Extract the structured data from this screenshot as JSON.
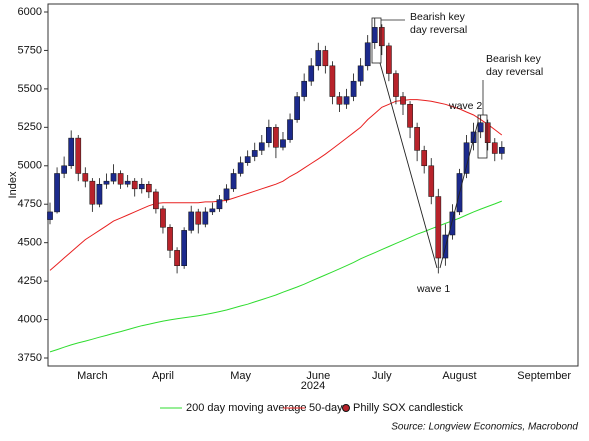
{
  "chart_data": {
    "type": "candlestick",
    "ylabel": "Index",
    "xlabel": "2024",
    "categories": [
      null,
      null,
      null,
      null,
      null,
      null,
      "March",
      null,
      null,
      null,
      null,
      null,
      null,
      null,
      null,
      null,
      "April",
      null,
      null,
      null,
      null,
      null,
      null,
      null,
      null,
      null,
      null,
      "May",
      null,
      null,
      null,
      null,
      null,
      null,
      null,
      null,
      null,
      null,
      "June",
      null,
      null,
      null,
      null,
      null,
      null,
      null,
      null,
      "July",
      null,
      null,
      null,
      null,
      null,
      null,
      null,
      null,
      null,
      null,
      "August",
      null,
      null,
      null,
      null,
      null,
      null,
      null,
      null,
      null,
      null,
      null,
      "September"
    ],
    "ylim": [
      3700,
      6050
    ],
    "yticks": [
      3750,
      4000,
      4250,
      4500,
      4750,
      5000,
      5250,
      5500,
      5750,
      6000
    ],
    "series": [
      {
        "name": "200 day moving average",
        "type": "line",
        "color": "#2fdc2f",
        "values": [
          3790,
          3805,
          3820,
          3835,
          3848,
          3860,
          3872,
          3885,
          3897,
          3910,
          3922,
          3935,
          3948,
          3960,
          3970,
          3980,
          3990,
          3998,
          4005,
          4012,
          4018,
          4025,
          4033,
          4042,
          4052,
          4062,
          4075,
          4088,
          4100,
          4115,
          4130,
          4145,
          4160,
          4178,
          4195,
          4212,
          4230,
          4250,
          4270,
          4290,
          4310,
          4330,
          4350,
          4372,
          4395,
          4415,
          4435,
          4455,
          4475,
          4495,
          4515,
          4535,
          4555,
          4572,
          4590,
          4608,
          4625,
          4642,
          4660,
          4680,
          4700,
          4718,
          4735,
          4752,
          4770,
          null,
          null,
          null,
          null,
          null,
          null
        ]
      },
      {
        "name": "50-day",
        "type": "line",
        "color": "#e82020",
        "values": [
          4320,
          4360,
          4400,
          4440,
          4480,
          4520,
          4550,
          4580,
          4610,
          4640,
          4660,
          4680,
          4700,
          4720,
          4740,
          4755,
          4760,
          4760,
          4760,
          4760,
          4760,
          4760,
          4765,
          4765,
          4770,
          4775,
          4790,
          4805,
          4820,
          4835,
          4850,
          4865,
          4880,
          4900,
          4930,
          4955,
          4985,
          5015,
          5045,
          5075,
          5110,
          5145,
          5180,
          5215,
          5250,
          5300,
          5340,
          5380,
          5400,
          5420,
          5425,
          5430,
          5430,
          5425,
          5420,
          5410,
          5400,
          5385,
          5370,
          5350,
          5330,
          5300,
          5270,
          5235,
          5200,
          null,
          null,
          null,
          null,
          null,
          null
        ]
      },
      {
        "name": "Philly SOX candlestick",
        "type": "candlestick",
        "up_color": "#1c2a8c",
        "down_color": "#b8232b",
        "open": [
          4650,
          4700,
          4950,
          5000,
          5180,
          4950,
          4900,
          4750,
          4880,
          4900,
          4950,
          4880,
          4900,
          4850,
          4880,
          4830,
          4720,
          4600,
          4450,
          4350,
          4580,
          4700,
          4620,
          4700,
          4720,
          4780,
          4850,
          4950,
          5020,
          5060,
          5100,
          5150,
          5250,
          5120,
          5170,
          5300,
          5450,
          5550,
          5650,
          5750,
          5650,
          5450,
          5400,
          5450,
          5550,
          5650,
          5800,
          5900,
          5780,
          5600,
          5450,
          5400,
          5250,
          5100,
          5000,
          4800,
          4400,
          4550,
          4700,
          4950,
          5150,
          5220,
          5280,
          5150,
          5080,
          null,
          null,
          null,
          null,
          null,
          null
        ],
        "high": [
          4760,
          4990,
          5060,
          5230,
          5200,
          4990,
          4920,
          4920,
          4950,
          5010,
          4970,
          4940,
          4920,
          4920,
          4900,
          4850,
          4740,
          4620,
          4470,
          4600,
          4740,
          4720,
          4730,
          4760,
          4810,
          4880,
          4980,
          5060,
          5100,
          5150,
          5200,
          5300,
          5270,
          5220,
          5340,
          5480,
          5600,
          5700,
          5800,
          5780,
          5680,
          5480,
          5500,
          5600,
          5700,
          5850,
          5960,
          5920,
          5800,
          5620,
          5480,
          5420,
          5280,
          5130,
          5050,
          4850,
          4620,
          4750,
          4980,
          5200,
          5280,
          5330,
          5300,
          5180,
          5160,
          null,
          null,
          null,
          null,
          null,
          null
        ],
        "low": [
          4620,
          4690,
          4920,
          4980,
          4900,
          4860,
          4700,
          4730,
          4850,
          4880,
          4850,
          4860,
          4800,
          4820,
          4790,
          4690,
          4560,
          4400,
          4300,
          4330,
          4560,
          4560,
          4600,
          4680,
          4700,
          4760,
          4830,
          4930,
          5000,
          5030,
          5070,
          5120,
          5050,
          5100,
          5150,
          5280,
          5420,
          5520,
          5620,
          5600,
          5400,
          5350,
          5370,
          5420,
          5520,
          5620,
          5760,
          5720,
          5550,
          5400,
          5330,
          5180,
          5030,
          4950,
          4750,
          4300,
          4350,
          4520,
          4680,
          4920,
          5100,
          5180,
          5100,
          5030,
          5040,
          null,
          null,
          null,
          null,
          null,
          null
        ],
        "close": [
          4700,
          4950,
          5000,
          5180,
          4950,
          4900,
          4750,
          4880,
          4900,
          4950,
          4880,
          4900,
          4850,
          4880,
          4830,
          4720,
          4600,
          4450,
          4350,
          4580,
          4700,
          4620,
          4700,
          4720,
          4780,
          4850,
          4950,
          5020,
          5060,
          5100,
          5150,
          5250,
          5120,
          5170,
          5300,
          5450,
          5550,
          5650,
          5750,
          5650,
          5450,
          5400,
          5450,
          5550,
          5650,
          5800,
          5900,
          5780,
          5600,
          5450,
          5400,
          5250,
          5100,
          5000,
          4800,
          4400,
          4550,
          4700,
          4950,
          5150,
          5220,
          5280,
          5150,
          5080,
          5120,
          null,
          null,
          null,
          null,
          null,
          null
        ]
      }
    ],
    "annotations": [
      {
        "lines": [
          "Bearish key",
          "day reversal"
        ]
      },
      {
        "lines": [
          "Bearish key",
          "day reversal"
        ]
      },
      {
        "lines": [
          "wave 2"
        ]
      },
      {
        "lines": [
          "wave 1"
        ]
      }
    ],
    "source": "Source: Longview Economics, Macrobond"
  }
}
